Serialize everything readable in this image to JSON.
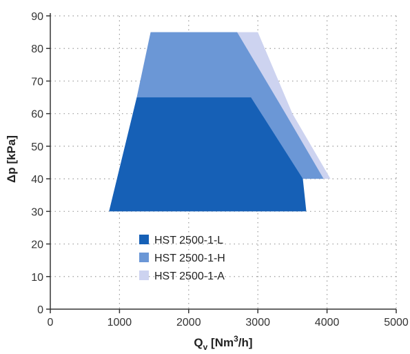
{
  "chart_data": {
    "type": "area",
    "title": "",
    "xlabel": "Q_v [Nm³/h]",
    "xlabel_parts": {
      "main": "Q",
      "sub": "v",
      "unit_a": " [Nm",
      "sup": "3",
      "unit_b": "/h]"
    },
    "ylabel": "Δp [kPa]",
    "xlim": [
      0,
      5000
    ],
    "ylim": [
      0,
      90
    ],
    "xticks": [
      0,
      1000,
      2000,
      3000,
      4000,
      5000
    ],
    "yticks": [
      0,
      10,
      20,
      30,
      40,
      50,
      60,
      70,
      80,
      90
    ],
    "grid": true,
    "legend_position": "bottom-center",
    "series": [
      {
        "name": "HST 2500-1-A",
        "color": "#cdd3f0",
        "polygon": [
          [
            1450,
            85
          ],
          [
            3000,
            85
          ],
          [
            3500,
            60
          ],
          [
            4050,
            40
          ],
          [
            3650,
            40
          ],
          [
            3650,
            30
          ],
          [
            850,
            30
          ],
          [
            1250,
            65
          ]
        ]
      },
      {
        "name": "HST 2500-1-H",
        "color": "#6b97d6",
        "polygon": [
          [
            1450,
            85
          ],
          [
            2700,
            85
          ],
          [
            3400,
            60
          ],
          [
            3950,
            40
          ],
          [
            3650,
            40
          ],
          [
            3650,
            30
          ],
          [
            850,
            30
          ],
          [
            1250,
            65
          ]
        ]
      },
      {
        "name": "HST 2500-1-L",
        "color": "#1660b6",
        "polygon": [
          [
            1250,
            65
          ],
          [
            2900,
            65
          ],
          [
            3650,
            40
          ],
          [
            3700,
            30
          ],
          [
            850,
            30
          ]
        ]
      }
    ],
    "legend": [
      {
        "name": "HST 2500-1-L",
        "color": "#1660b6"
      },
      {
        "name": "HST 2500-1-H",
        "color": "#6b97d6"
      },
      {
        "name": "HST 2500-1-A",
        "color": "#cdd3f0"
      }
    ]
  }
}
